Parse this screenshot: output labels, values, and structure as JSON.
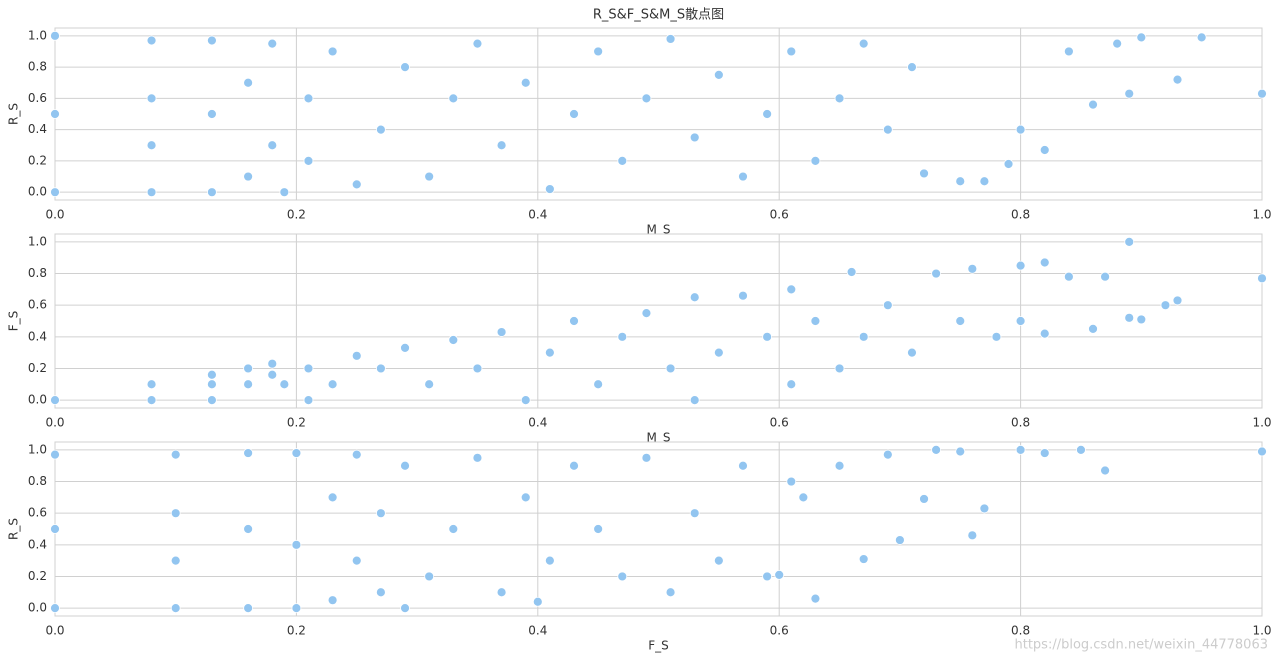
{
  "chart_data": [
    {
      "type": "scatter",
      "title": "R_S&F_S&M_S散点图",
      "xlabel": "M_S",
      "ylabel": "R_S",
      "color": "#92c5f0",
      "grid": true,
      "xlim": [
        0,
        1
      ],
      "ylim": [
        -0.05,
        1.05
      ],
      "xticks": [
        {
          "value": 0,
          "label": "0.0"
        },
        0.2,
        0.4,
        0.6,
        0.8,
        {
          "value": 1,
          "label": "1.0"
        }
      ],
      "yticks": [
        {
          "value": 0,
          "label": "0.0"
        },
        0.2,
        0.4,
        0.6,
        0.8,
        {
          "value": 1,
          "label": "1.0"
        }
      ],
      "x": [
        0,
        0,
        0,
        0.08,
        0.08,
        0.08,
        0.08,
        0.13,
        0.13,
        0.13,
        0.16,
        0.16,
        0.18,
        0.18,
        0.19,
        0.21,
        0.21,
        0.23,
        0.25,
        0.27,
        0.29,
        0.31,
        0.33,
        0.35,
        0.37,
        0.39,
        0.41,
        0.43,
        0.45,
        0.47,
        0.49,
        0.51,
        0.53,
        0.55,
        0.57,
        0.59,
        0.61,
        0.63,
        0.65,
        0.67,
        0.69,
        0.71,
        0.72,
        0.75,
        0.77,
        0.79,
        0.8,
        0.82,
        0.84,
        0.86,
        0.88,
        0.89,
        0.9,
        0.93,
        0.95,
        1.0
      ],
      "y": [
        0,
        0.5,
        1.0,
        0,
        0.3,
        0.6,
        0.97,
        0,
        0.5,
        0.97,
        0.1,
        0.7,
        0.3,
        0.95,
        0,
        0.2,
        0.6,
        0.9,
        0.05,
        0.4,
        0.8,
        0.1,
        0.6,
        0.95,
        0.3,
        0.7,
        0.02,
        0.5,
        0.9,
        0.2,
        0.6,
        0.98,
        0.35,
        0.75,
        0.1,
        0.5,
        0.9,
        0.2,
        0.6,
        0.95,
        0.4,
        0.8,
        0.12,
        0.07,
        0.07,
        0.18,
        0.4,
        0.27,
        0.9,
        0.56,
        0.95,
        0.63,
        0.99,
        0.72,
        0.99,
        0.63
      ]
    },
    {
      "type": "scatter",
      "xlabel": "M_S",
      "ylabel": "F_S",
      "color": "#92c5f0",
      "grid": true,
      "xlim": [
        0,
        1
      ],
      "ylim": [
        -0.05,
        1.05
      ],
      "xticks": [
        {
          "value": 0,
          "label": "0.0"
        },
        0.2,
        0.4,
        0.6,
        0.8,
        {
          "value": 1,
          "label": "1.0"
        }
      ],
      "yticks": [
        {
          "value": 0,
          "label": "0.0"
        },
        0.2,
        0.4,
        0.6,
        0.8,
        {
          "value": 1,
          "label": "1.0"
        }
      ],
      "x": [
        0,
        0.08,
        0.08,
        0.13,
        0.13,
        0.13,
        0.16,
        0.16,
        0.18,
        0.18,
        0.19,
        0.21,
        0.21,
        0.23,
        0.25,
        0.27,
        0.29,
        0.31,
        0.33,
        0.35,
        0.37,
        0.39,
        0.41,
        0.43,
        0.45,
        0.47,
        0.49,
        0.51,
        0.53,
        0.53,
        0.55,
        0.57,
        0.59,
        0.61,
        0.61,
        0.63,
        0.65,
        0.66,
        0.67,
        0.69,
        0.71,
        0.73,
        0.75,
        0.76,
        0.78,
        0.8,
        0.8,
        0.82,
        0.82,
        0.84,
        0.86,
        0.87,
        0.89,
        0.89,
        0.9,
        0.92,
        0.93,
        1.0
      ],
      "y": [
        0,
        0,
        0.1,
        0,
        0.1,
        0.16,
        0.1,
        0.2,
        0.16,
        0.23,
        0.1,
        0,
        0.2,
        0.1,
        0.28,
        0.2,
        0.33,
        0.1,
        0.38,
        0.2,
        0.43,
        0,
        0.3,
        0.5,
        0.1,
        0.4,
        0.55,
        0.2,
        0,
        0.65,
        0.3,
        0.66,
        0.4,
        0.1,
        0.7,
        0.5,
        0.2,
        0.81,
        0.4,
        0.6,
        0.3,
        0.8,
        0.5,
        0.83,
        0.4,
        0.85,
        0.5,
        0.87,
        0.42,
        0.78,
        0.45,
        0.78,
        1.0,
        0.52,
        0.51,
        0.6,
        0.63,
        0.77
      ]
    },
    {
      "type": "scatter",
      "xlabel": "F_S",
      "ylabel": "R_S",
      "color": "#92c5f0",
      "grid": true,
      "xlim": [
        0,
        1
      ],
      "ylim": [
        -0.05,
        1.05
      ],
      "xticks": [
        {
          "value": 0,
          "label": "0.0"
        },
        0.2,
        0.4,
        0.6,
        0.8,
        {
          "value": 1,
          "label": "1.0"
        }
      ],
      "yticks": [
        {
          "value": 0,
          "label": "0.0"
        },
        0.2,
        0.4,
        0.6,
        0.8,
        {
          "value": 1,
          "label": "1.0"
        }
      ],
      "x": [
        0,
        0,
        0,
        0.1,
        0.1,
        0.1,
        0.1,
        0.16,
        0.16,
        0.16,
        0.2,
        0.2,
        0.2,
        0.23,
        0.23,
        0.25,
        0.25,
        0.27,
        0.27,
        0.29,
        0.29,
        0.31,
        0.33,
        0.35,
        0.37,
        0.39,
        0.4,
        0.41,
        0.43,
        0.45,
        0.47,
        0.49,
        0.51,
        0.53,
        0.55,
        0.57,
        0.59,
        0.6,
        0.61,
        0.62,
        0.63,
        0.65,
        0.67,
        0.69,
        0.7,
        0.72,
        0.73,
        0.75,
        0.76,
        0.77,
        0.8,
        0.82,
        0.85,
        0.87,
        1.0
      ],
      "y": [
        0,
        0.5,
        0.97,
        0,
        0.3,
        0.6,
        0.97,
        0,
        0.5,
        0.98,
        0,
        0.4,
        0.98,
        0.05,
        0.7,
        0.3,
        0.97,
        0.1,
        0.6,
        0,
        0.9,
        0.2,
        0.5,
        0.95,
        0.1,
        0.7,
        0.04,
        0.3,
        0.9,
        0.5,
        0.2,
        0.95,
        0.1,
        0.6,
        0.3,
        0.9,
        0.2,
        0.21,
        0.8,
        0.7,
        0.06,
        0.9,
        0.31,
        0.97,
        0.43,
        0.69,
        1.0,
        0.99,
        0.46,
        0.63,
        1.0,
        0.98,
        1.0,
        0.87,
        0.99
      ]
    }
  ],
  "watermark": "https://blog.csdn.net/weixin_44778063"
}
